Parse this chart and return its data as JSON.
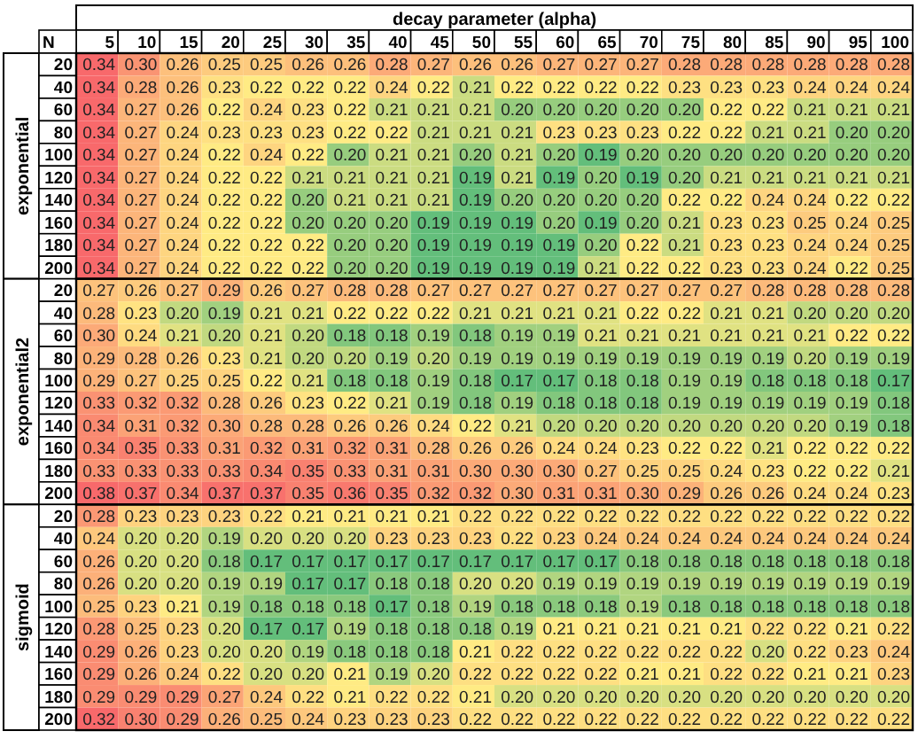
{
  "chart_data": {
    "type": "heatmap",
    "xlabel": "decay parameter (alpha)",
    "annotations": [
      "N",
      "exponential",
      "exponential2",
      "sigmoid"
    ],
    "data_labels": true,
    "categories": [
      "5",
      "10",
      "15",
      "20",
      "25",
      "30",
      "35",
      "40",
      "45",
      "50",
      "55",
      "60",
      "65",
      "70",
      "75",
      "80",
      "85",
      "90",
      "95",
      "100"
    ],
    "y_categories": [
      "20",
      "40",
      "60",
      "80",
      "100",
      "120",
      "140",
      "160",
      "180",
      "200",
      "20",
      "40",
      "60",
      "80",
      "100",
      "120",
      "140",
      "160",
      "180",
      "200",
      "20",
      "40",
      "60",
      "80",
      "100",
      "120",
      "140",
      "160",
      "180",
      "200"
    ],
    "cells": [
      [
        0.34,
        0.3,
        0.26,
        0.25,
        0.25,
        0.26,
        0.26,
        0.28,
        0.27,
        0.26,
        0.26,
        0.27,
        0.27,
        0.27,
        0.28,
        0.28,
        0.28,
        0.28,
        0.28,
        0.28
      ],
      [
        0.34,
        0.28,
        0.26,
        0.23,
        0.22,
        0.22,
        0.22,
        0.24,
        0.22,
        0.21,
        0.22,
        0.22,
        0.22,
        0.22,
        0.23,
        0.23,
        0.23,
        0.24,
        0.24,
        0.24
      ],
      [
        0.34,
        0.27,
        0.26,
        0.22,
        0.24,
        0.23,
        0.22,
        0.21,
        0.21,
        0.21,
        0.2,
        0.2,
        0.2,
        0.2,
        0.2,
        0.22,
        0.22,
        0.21,
        0.21,
        0.21
      ],
      [
        0.34,
        0.27,
        0.24,
        0.23,
        0.23,
        0.23,
        0.22,
        0.22,
        0.21,
        0.21,
        0.21,
        0.23,
        0.23,
        0.23,
        0.22,
        0.22,
        0.21,
        0.21,
        0.2,
        0.2
      ],
      [
        0.34,
        0.27,
        0.24,
        0.22,
        0.24,
        0.22,
        0.2,
        0.21,
        0.21,
        0.2,
        0.21,
        0.2,
        0.19,
        0.2,
        0.2,
        0.2,
        0.2,
        0.2,
        0.2,
        0.2
      ],
      [
        0.34,
        0.27,
        0.24,
        0.22,
        0.22,
        0.21,
        0.21,
        0.21,
        0.21,
        0.19,
        0.21,
        0.19,
        0.2,
        0.19,
        0.2,
        0.21,
        0.21,
        0.21,
        0.21,
        0.21
      ],
      [
        0.34,
        0.27,
        0.24,
        0.22,
        0.22,
        0.2,
        0.21,
        0.21,
        0.21,
        0.19,
        0.2,
        0.2,
        0.2,
        0.2,
        0.22,
        0.22,
        0.24,
        0.24,
        0.22,
        0.22
      ],
      [
        0.34,
        0.27,
        0.24,
        0.22,
        0.22,
        0.2,
        0.2,
        0.2,
        0.19,
        0.19,
        0.19,
        0.2,
        0.19,
        0.2,
        0.21,
        0.23,
        0.23,
        0.25,
        0.24,
        0.25
      ],
      [
        0.34,
        0.27,
        0.24,
        0.22,
        0.22,
        0.22,
        0.2,
        0.2,
        0.19,
        0.19,
        0.19,
        0.19,
        0.2,
        0.22,
        0.21,
        0.23,
        0.23,
        0.24,
        0.24,
        0.25
      ],
      [
        0.34,
        0.27,
        0.24,
        0.22,
        0.22,
        0.22,
        0.2,
        0.2,
        0.19,
        0.19,
        0.19,
        0.19,
        0.21,
        0.22,
        0.22,
        0.23,
        0.23,
        0.24,
        0.22,
        0.25
      ],
      [
        0.27,
        0.26,
        0.27,
        0.29,
        0.26,
        0.27,
        0.28,
        0.28,
        0.27,
        0.27,
        0.27,
        0.27,
        0.27,
        0.27,
        0.27,
        0.27,
        0.28,
        0.28,
        0.28,
        0.28
      ],
      [
        0.28,
        0.23,
        0.2,
        0.19,
        0.21,
        0.21,
        0.22,
        0.22,
        0.22,
        0.21,
        0.21,
        0.21,
        0.21,
        0.22,
        0.22,
        0.21,
        0.21,
        0.2,
        0.2,
        0.2
      ],
      [
        0.3,
        0.24,
        0.21,
        0.2,
        0.21,
        0.2,
        0.18,
        0.18,
        0.19,
        0.18,
        0.19,
        0.19,
        0.21,
        0.21,
        0.21,
        0.21,
        0.21,
        0.21,
        0.22,
        0.22
      ],
      [
        0.29,
        0.28,
        0.26,
        0.23,
        0.21,
        0.2,
        0.2,
        0.19,
        0.2,
        0.19,
        0.19,
        0.19,
        0.19,
        0.19,
        0.19,
        0.19,
        0.19,
        0.2,
        0.19,
        0.19
      ],
      [
        0.29,
        0.27,
        0.25,
        0.25,
        0.22,
        0.21,
        0.18,
        0.18,
        0.19,
        0.18,
        0.17,
        0.17,
        0.18,
        0.18,
        0.19,
        0.19,
        0.18,
        0.18,
        0.18,
        0.17
      ],
      [
        0.33,
        0.32,
        0.32,
        0.28,
        0.26,
        0.23,
        0.22,
        0.21,
        0.19,
        0.18,
        0.19,
        0.18,
        0.18,
        0.18,
        0.19,
        0.19,
        0.19,
        0.19,
        0.19,
        0.18
      ],
      [
        0.34,
        0.31,
        0.32,
        0.3,
        0.28,
        0.28,
        0.26,
        0.26,
        0.24,
        0.22,
        0.21,
        0.2,
        0.2,
        0.2,
        0.2,
        0.2,
        0.2,
        0.2,
        0.19,
        0.18
      ],
      [
        0.34,
        0.35,
        0.33,
        0.31,
        0.32,
        0.31,
        0.32,
        0.31,
        0.28,
        0.26,
        0.26,
        0.24,
        0.24,
        0.23,
        0.22,
        0.22,
        0.21,
        0.22,
        0.22,
        0.22
      ],
      [
        0.33,
        0.33,
        0.33,
        0.33,
        0.34,
        0.35,
        0.33,
        0.31,
        0.31,
        0.3,
        0.3,
        0.3,
        0.27,
        0.25,
        0.25,
        0.24,
        0.23,
        0.22,
        0.22,
        0.21
      ],
      [
        0.38,
        0.37,
        0.34,
        0.37,
        0.37,
        0.35,
        0.36,
        0.35,
        0.32,
        0.32,
        0.3,
        0.31,
        0.31,
        0.3,
        0.29,
        0.26,
        0.26,
        0.24,
        0.24,
        0.23
      ],
      [
        0.28,
        0.23,
        0.23,
        0.23,
        0.22,
        0.21,
        0.21,
        0.21,
        0.21,
        0.22,
        0.22,
        0.22,
        0.22,
        0.22,
        0.22,
        0.22,
        0.22,
        0.22,
        0.22,
        0.22
      ],
      [
        0.24,
        0.2,
        0.2,
        0.19,
        0.2,
        0.2,
        0.2,
        0.23,
        0.23,
        0.23,
        0.22,
        0.23,
        0.24,
        0.24,
        0.24,
        0.24,
        0.24,
        0.24,
        0.24,
        0.24
      ],
      [
        0.26,
        0.2,
        0.2,
        0.18,
        0.17,
        0.17,
        0.17,
        0.17,
        0.17,
        0.17,
        0.17,
        0.17,
        0.17,
        0.18,
        0.18,
        0.18,
        0.18,
        0.18,
        0.18,
        0.18
      ],
      [
        0.26,
        0.2,
        0.2,
        0.19,
        0.19,
        0.17,
        0.17,
        0.18,
        0.18,
        0.2,
        0.2,
        0.19,
        0.19,
        0.19,
        0.19,
        0.19,
        0.19,
        0.19,
        0.19,
        0.19
      ],
      [
        0.25,
        0.23,
        0.21,
        0.19,
        0.18,
        0.18,
        0.18,
        0.17,
        0.18,
        0.19,
        0.18,
        0.18,
        0.18,
        0.19,
        0.18,
        0.18,
        0.18,
        0.18,
        0.18,
        0.18
      ],
      [
        0.28,
        0.25,
        0.23,
        0.2,
        0.17,
        0.17,
        0.19,
        0.18,
        0.18,
        0.18,
        0.19,
        0.21,
        0.21,
        0.21,
        0.21,
        0.21,
        0.22,
        0.22,
        0.21,
        0.22
      ],
      [
        0.29,
        0.26,
        0.23,
        0.2,
        0.2,
        0.19,
        0.18,
        0.18,
        0.18,
        0.21,
        0.22,
        0.22,
        0.22,
        0.22,
        0.22,
        0.22,
        0.2,
        0.22,
        0.23,
        0.24
      ],
      [
        0.29,
        0.26,
        0.24,
        0.22,
        0.2,
        0.2,
        0.21,
        0.19,
        0.2,
        0.22,
        0.22,
        0.22,
        0.22,
        0.21,
        0.21,
        0.22,
        0.22,
        0.21,
        0.21,
        0.23
      ],
      [
        0.29,
        0.29,
        0.29,
        0.27,
        0.24,
        0.22,
        0.21,
        0.22,
        0.22,
        0.21,
        0.2,
        0.2,
        0.2,
        0.2,
        0.2,
        0.2,
        0.2,
        0.2,
        0.2,
        0.2
      ],
      [
        0.32,
        0.3,
        0.29,
        0.26,
        0.25,
        0.24,
        0.23,
        0.23,
        0.23,
        0.22,
        0.22,
        0.22,
        0.22,
        0.22,
        0.22,
        0.22,
        0.22,
        0.22,
        0.22,
        0.22
      ]
    ],
    "cell_labels": [
      [
        "0.34",
        "0.30",
        "0.26",
        "0.25",
        "0.25",
        "0.26",
        "0.26",
        "0.28",
        "0.27",
        "0.26",
        "0.26",
        "0.27",
        "0.27",
        "0.27",
        "0.28",
        "0.28",
        "0.28",
        "0.28",
        "0.28",
        "0.28"
      ],
      [
        "0.34",
        "0.28",
        "0.26",
        "0.23",
        "0.22",
        "0.22",
        "0.22",
        "0.24",
        "0.22",
        "0.21",
        "0.22",
        "0.22",
        "0.22",
        "0.22",
        "0.23",
        "0.23",
        "0.23",
        "0.24",
        "0.24",
        "0.24"
      ],
      [
        "0.34",
        "0.27",
        "0.26",
        "0.22",
        "0.24",
        "0.23",
        "0.22",
        "0.21",
        "0.21",
        "0.21",
        "0.20",
        "0.20",
        "0.20",
        "0.20",
        "0.20",
        "0.22",
        "0.22",
        "0.21",
        "0.21",
        "0.21"
      ],
      [
        "0.34",
        "0.27",
        "0.24",
        "0.23",
        "0.23",
        "0.23",
        "0.22",
        "0.22",
        "0.21",
        "0.21",
        "0.21",
        "0.23",
        "0.23",
        "0.23",
        "0.22",
        "0.22",
        "0.21",
        "0.21",
        "0.20",
        "0.20"
      ],
      [
        "0.34",
        "0.27",
        "0.24",
        "0.22",
        "0.24",
        "0.22",
        "0.20",
        "0.21",
        "0.21",
        "0.20",
        "0.21",
        "0.20",
        "0.19",
        "0.20",
        "0.20",
        "0.20",
        "0.20",
        "0.20",
        "0.20",
        "0.20"
      ],
      [
        "0.34",
        "0.27",
        "0.24",
        "0.22",
        "0.22",
        "0.21",
        "0.21",
        "0.21",
        "0.21",
        "0.19",
        "0.21",
        "0.19",
        "0.20",
        "0.19",
        "0.20",
        "0.21",
        "0.21",
        "0.21",
        "0.21",
        "0.21"
      ],
      [
        "0.34",
        "0.27",
        "0.24",
        "0.22",
        "0.22",
        "0.20",
        "0.21",
        "0.21",
        "0.21",
        "0.19",
        "0.20",
        "0.20",
        "0.20",
        "0.20",
        "0.22",
        "0.22",
        "0.24",
        "0.24",
        "0.22",
        "0.22"
      ],
      [
        "0.34",
        "0.27",
        "0.24",
        "0.22",
        "0.22",
        "0.20",
        "0.20",
        "0.20",
        "0.19",
        "0.19",
        "0.19",
        "0.20",
        "0.19",
        "0.20",
        "0.21",
        "0.23",
        "0.23",
        "0.25",
        "0.24",
        "0.25"
      ],
      [
        "0.34",
        "0.27",
        "0.24",
        "0.22",
        "0.22",
        "0.22",
        "0.20",
        "0.20",
        "0.19",
        "0.19",
        "0.19",
        "0.19",
        "0.20",
        "0.22",
        "0.21",
        "0.23",
        "0.23",
        "0.24",
        "0.24",
        "0.25"
      ],
      [
        "0.34",
        "0.27",
        "0.24",
        "0.22",
        "0.22",
        "0.22",
        "0.20",
        "0.20",
        "0.19",
        "0.19",
        "0.19",
        "0.19",
        "0.21",
        "0.22",
        "0.22",
        "0.23",
        "0.23",
        "0.24",
        "0.22",
        "0.25"
      ],
      [
        "0.27",
        "0.26",
        "0.27",
        "0.29",
        "0.26",
        "0.27",
        "0.28",
        "0.28",
        "0.27",
        "0.27",
        "0.27",
        "0.27",
        "0.27",
        "0.27",
        "0.27",
        "0.27",
        "0.28",
        "0.28",
        "0.28",
        "0.28"
      ],
      [
        "0.28",
        "0.23",
        "0.20",
        "0.19",
        "0.21",
        "0.21",
        "0.22",
        "0.22",
        "0.22",
        "0.21",
        "0.21",
        "0.21",
        "0.21",
        "0.22",
        "0.22",
        "0.21",
        "0.21",
        "0.20",
        "0.20",
        "0.20"
      ],
      [
        "0.30",
        "0.24",
        "0.21",
        "0.20",
        "0.21",
        "0.20",
        "0.18",
        "0.18",
        "0.19",
        "0.18",
        "0.19",
        "0.19",
        "0.21",
        "0.21",
        "0.21",
        "0.21",
        "0.21",
        "0.21",
        "0.22",
        "0.22"
      ],
      [
        "0.29",
        "0.28",
        "0.26",
        "0.23",
        "0.21",
        "0.20",
        "0.20",
        "0.19",
        "0.20",
        "0.19",
        "0.19",
        "0.19",
        "0.19",
        "0.19",
        "0.19",
        "0.19",
        "0.19",
        "0.20",
        "0.19",
        "0.19"
      ],
      [
        "0.29",
        "0.27",
        "0.25",
        "0.25",
        "0.22",
        "0.21",
        "0.18",
        "0.18",
        "0.19",
        "0.18",
        "0.17",
        "0.17",
        "0.18",
        "0.18",
        "0.19",
        "0.19",
        "0.18",
        "0.18",
        "0.18",
        "0.17"
      ],
      [
        "0.33",
        "0.32",
        "0.32",
        "0.28",
        "0.26",
        "0.23",
        "0.22",
        "0.21",
        "0.19",
        "0.18",
        "0.19",
        "0.18",
        "0.18",
        "0.18",
        "0.19",
        "0.19",
        "0.19",
        "0.19",
        "0.19",
        "0.18"
      ],
      [
        "0.34",
        "0.31",
        "0.32",
        "0.30",
        "0.28",
        "0.28",
        "0.26",
        "0.26",
        "0.24",
        "0.22",
        "0.21",
        "0.20",
        "0.20",
        "0.20",
        "0.20",
        "0.20",
        "0.20",
        "0.20",
        "0.19",
        "0.18"
      ],
      [
        "0.34",
        "0.35",
        "0.33",
        "0.31",
        "0.32",
        "0.31",
        "0.32",
        "0.31",
        "0.28",
        "0.26",
        "0.26",
        "0.24",
        "0.24",
        "0.23",
        "0.22",
        "0.22",
        "0.21",
        "0.22",
        "0.22",
        "0.22"
      ],
      [
        "0.33",
        "0.33",
        "0.33",
        "0.33",
        "0.34",
        "0.35",
        "0.33",
        "0.31",
        "0.31",
        "0.30",
        "0.30",
        "0.30",
        "0.27",
        "0.25",
        "0.25",
        "0.24",
        "0.23",
        "0.22",
        "0.22",
        "0.21"
      ],
      [
        "0.38",
        "0.37",
        "0.34",
        "0.37",
        "0.37",
        "0.35",
        "0.36",
        "0.35",
        "0.32",
        "0.32",
        "0.30",
        "0.31",
        "0.31",
        "0.30",
        "0.29",
        "0.26",
        "0.26",
        "0.24",
        "0.24",
        "0.23"
      ],
      [
        "0.28",
        "0.23",
        "0.23",
        "0.23",
        "0.22",
        "0.21",
        "0.21",
        "0.21",
        "0.21",
        "0.22",
        "0.22",
        "0.22",
        "0.22",
        "0.22",
        "0.22",
        "0.22",
        "0.22",
        "0.22",
        "0.22",
        "0.22"
      ],
      [
        "0.24",
        "0.20",
        "0.20",
        "0.19",
        "0.20",
        "0.20",
        "0.20",
        "0.23",
        "0.23",
        "0.23",
        "0.22",
        "0.23",
        "0.24",
        "0.24",
        "0.24",
        "0.24",
        "0.24",
        "0.24",
        "0.24",
        "0.24"
      ],
      [
        "0.26",
        "0.20",
        "0.20",
        "0.18",
        "0.17",
        "0.17",
        "0.17",
        "0.17",
        "0.17",
        "0.17",
        "0.17",
        "0.17",
        "0.17",
        "0.18",
        "0.18",
        "0.18",
        "0.18",
        "0.18",
        "0.18",
        "0.18"
      ],
      [
        "0.26",
        "0.20",
        "0.20",
        "0.19",
        "0.19",
        "0.17",
        "0.17",
        "0.18",
        "0.18",
        "0.20",
        "0.20",
        "0.19",
        "0.19",
        "0.19",
        "0.19",
        "0.19",
        "0.19",
        "0.19",
        "0.19",
        "0.19"
      ],
      [
        "0.25",
        "0.23",
        "0.21",
        "0.19",
        "0.18",
        "0.18",
        "0.18",
        "0.17",
        "0.18",
        "0.19",
        "0.18",
        "0.18",
        "0.18",
        "0.19",
        "0.18",
        "0.18",
        "0.18",
        "0.18",
        "0.18",
        "0.18"
      ],
      [
        "0.28",
        "0.25",
        "0.23",
        "0.20",
        "0.17",
        "0.17",
        "0.19",
        "0.18",
        "0.18",
        "0.18",
        "0.19",
        "0.21",
        "0.21",
        "0.21",
        "0.21",
        "0.21",
        "0.22",
        "0.22",
        "0.21",
        "0.22"
      ],
      [
        "0.29",
        "0.26",
        "0.23",
        "0.20",
        "0.20",
        "0.19",
        "0.18",
        "0.18",
        "0.18",
        "0.21",
        "0.22",
        "0.22",
        "0.22",
        "0.22",
        "0.22",
        "0.22",
        "0.20",
        "0.22",
        "0.23",
        "0.24"
      ],
      [
        "0.29",
        "0.26",
        "0.24",
        "0.22",
        "0.20",
        "0.20",
        "0.21",
        "0.19",
        "0.20",
        "0.22",
        "0.22",
        "0.22",
        "0.22",
        "0.21",
        "0.21",
        "0.22",
        "0.22",
        "0.21",
        "0.21",
        "0.23"
      ],
      [
        "0.29",
        "0.29",
        "0.29",
        "0.27",
        "0.24",
        "0.22",
        "0.21",
        "0.22",
        "0.22",
        "0.21",
        "0.20",
        "0.20",
        "0.20",
        "0.20",
        "0.20",
        "0.20",
        "0.20",
        "0.20",
        "0.20",
        "0.20"
      ],
      [
        "0.32",
        "0.30",
        "0.29",
        "0.26",
        "0.25",
        "0.24",
        "0.23",
        "0.23",
        "0.23",
        "0.22",
        "0.22",
        "0.22",
        "0.22",
        "0.22",
        "0.22",
        "0.22",
        "0.22",
        "0.22",
        "0.22",
        "0.22"
      ]
    ]
  }
}
